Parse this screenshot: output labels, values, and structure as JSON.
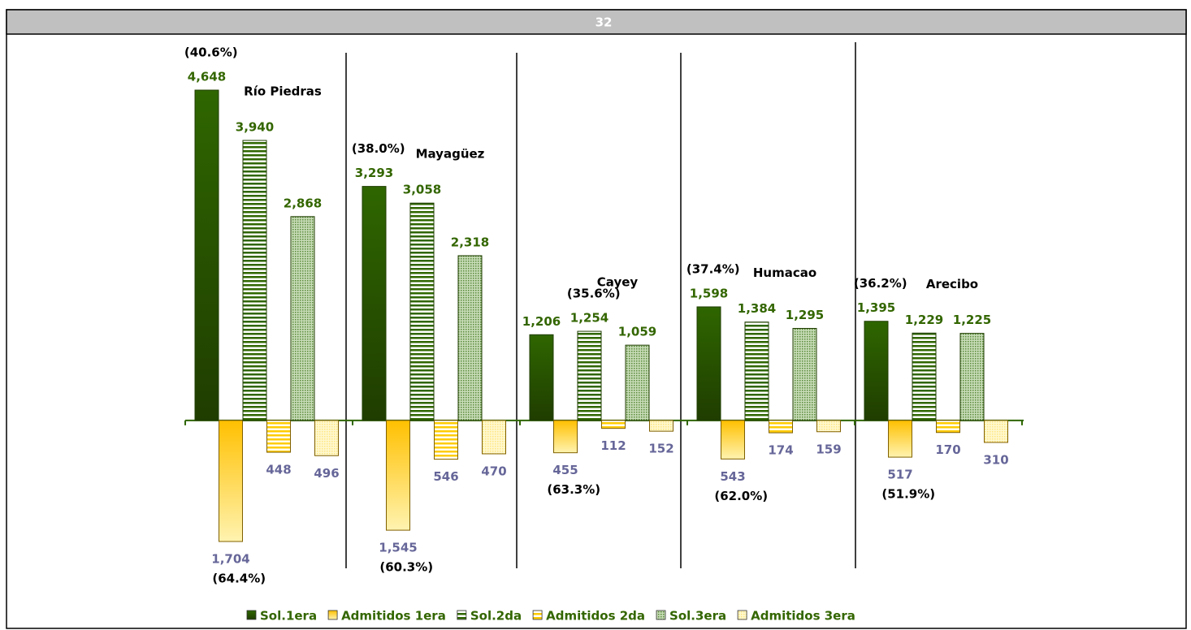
{
  "chart_data": {
    "type": "bar",
    "title": "32",
    "categories": [
      "Río Piedras",
      "Mayagüez",
      "Cayey",
      "Humacao",
      "Arecibo"
    ],
    "annotations_top": [
      "(40.6%)",
      "(38.0%)",
      "(35.6%)",
      "(37.4%)",
      "(36.2%)"
    ],
    "annotations_bottom": [
      "(64.4%)",
      "(60.3%)",
      "(63.3%)",
      "(62.0%)",
      "(51.9%)"
    ],
    "series": [
      {
        "name": "Sol.1era",
        "color": "#2f6600",
        "fill": "gradient",
        "values": [
          4648,
          3293,
          1206,
          1598,
          1395
        ],
        "value_labels": [
          "4,648",
          "3,293",
          "1,206",
          "1,598",
          "1,395"
        ]
      },
      {
        "name": "Admitidos 1era",
        "color": "#ffcc00",
        "fill": "gradient",
        "values": [
          -1704,
          -1545,
          -455,
          -543,
          -517
        ],
        "value_labels": [
          "1,704",
          "1,545",
          "455",
          "543",
          "517"
        ]
      },
      {
        "name": "Sol.2da",
        "color": "#2f6600",
        "fill": "stripes",
        "values": [
          3940,
          3058,
          1254,
          1384,
          1229
        ],
        "value_labels": [
          "3,940",
          "3,058",
          "1,254",
          "1,384",
          "1,229"
        ]
      },
      {
        "name": "Admitidos 2da",
        "color": "#ffcc00",
        "fill": "stripes",
        "values": [
          -448,
          -546,
          -112,
          -174,
          -170
        ],
        "value_labels": [
          "448",
          "546",
          "112",
          "174",
          "170"
        ]
      },
      {
        "name": "Sol.3era",
        "color": "#5a8a3a",
        "fill": "dots",
        "values": [
          2868,
          2318,
          1059,
          1295,
          1225
        ],
        "value_labels": [
          "2,868",
          "2,318",
          "1,059",
          "1,295",
          "1,225"
        ]
      },
      {
        "name": "Admitidos 3era",
        "color": "#ffe680",
        "fill": "dots",
        "values": [
          -496,
          -470,
          -152,
          -159,
          -310
        ],
        "value_labels": [
          "496",
          "470",
          "152",
          "159",
          "310"
        ]
      }
    ]
  }
}
